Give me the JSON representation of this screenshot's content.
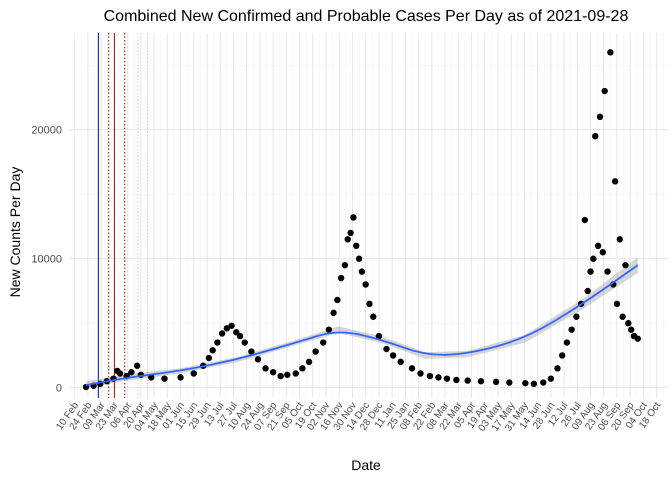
{
  "chart_data": {
    "type": "scatter",
    "title": "Combined New Confirmed and Probable Cases Per Day as of 2021-09-28",
    "xlabel": "Date",
    "ylabel": "New Counts Per Day",
    "xlim": [
      "2020-02-05",
      "2021-10-30"
    ],
    "ylim": [
      -800,
      27500
    ],
    "y_ticks": [
      0,
      10000,
      20000
    ],
    "y_tick_labels": [
      "0",
      "10000",
      "20000"
    ],
    "x_ticks": [
      "2020-02-10",
      "2020-02-24",
      "2020-03-09",
      "2020-03-23",
      "2020-04-06",
      "2020-04-20",
      "2020-05-04",
      "2020-05-18",
      "2020-06-01",
      "2020-06-15",
      "2020-06-29",
      "2020-07-13",
      "2020-07-27",
      "2020-08-10",
      "2020-08-24",
      "2020-09-07",
      "2020-09-21",
      "2020-10-05",
      "2020-10-19",
      "2020-11-02",
      "2020-11-16",
      "2020-11-30",
      "2020-12-14",
      "2020-12-28",
      "2021-01-11",
      "2021-01-25",
      "2021-02-08",
      "2021-02-22",
      "2021-03-08",
      "2021-03-22",
      "2021-04-05",
      "2021-04-19",
      "2021-05-03",
      "2021-05-17",
      "2021-05-31",
      "2021-06-14",
      "2021-06-28",
      "2021-07-12",
      "2021-07-26",
      "2021-08-09",
      "2021-08-23",
      "2021-09-06",
      "2021-09-20",
      "2021-10-04",
      "2021-10-18"
    ],
    "x_tick_labels": [
      "10 Feb",
      "24 Feb",
      "09 Mar",
      "23 Mar",
      "06 Apr",
      "20 Apr",
      "04 May",
      "18 May",
      "01 Jun",
      "15 Jun",
      "29 Jun",
      "13 Jul",
      "27 Jul",
      "10 Aug",
      "24 Aug",
      "07 Sep",
      "21 Sep",
      "05 Oct",
      "19 Oct",
      "02 Nov",
      "16 Nov",
      "30 Nov",
      "14 Dec",
      "28 Dec",
      "11 Jan",
      "25 Jan",
      "08 Feb",
      "22 Feb",
      "08 Mar",
      "22 Mar",
      "05 Apr",
      "19 Apr",
      "03 May",
      "17 May",
      "31 May",
      "14 Jun",
      "28 Jun",
      "12 Jul",
      "26 Jul",
      "09 Aug",
      "23 Aug",
      "06 Sep",
      "20 Sep",
      "04 Oct",
      "18 Oct"
    ],
    "grid": true,
    "vertical_lines": [
      {
        "x": "2020-03-06",
        "color": "#0000cc",
        "style": "solid"
      },
      {
        "x": "2020-03-17",
        "color": "#8b0000",
        "style": "dotted"
      },
      {
        "x": "2020-03-23",
        "color": "#cc0000",
        "style": "solid"
      },
      {
        "x": "2020-04-03",
        "color": "#8b0000",
        "style": "dotted"
      },
      {
        "x": "2020-04-17",
        "color": "#ffb6c1",
        "style": "dotted"
      },
      {
        "x": "2020-04-27",
        "color": "#ffb6c1",
        "style": "dotted"
      }
    ],
    "series": [
      {
        "kind": "points",
        "color": "#000000",
        "values": [
          {
            "x": "2020-02-22",
            "y": 50
          },
          {
            "x": "2020-03-01",
            "y": 150
          },
          {
            "x": "2020-03-08",
            "y": 300
          },
          {
            "x": "2020-03-15",
            "y": 500
          },
          {
            "x": "2020-03-22",
            "y": 700
          },
          {
            "x": "2020-03-26",
            "y": 1300
          },
          {
            "x": "2020-03-29",
            "y": 1100
          },
          {
            "x": "2020-04-05",
            "y": 900
          },
          {
            "x": "2020-04-10",
            "y": 1200
          },
          {
            "x": "2020-04-16",
            "y": 1700
          },
          {
            "x": "2020-04-20",
            "y": 1000
          },
          {
            "x": "2020-05-01",
            "y": 800
          },
          {
            "x": "2020-05-15",
            "y": 700
          },
          {
            "x": "2020-06-01",
            "y": 800
          },
          {
            "x": "2020-06-15",
            "y": 1100
          },
          {
            "x": "2020-06-25",
            "y": 1700
          },
          {
            "x": "2020-07-01",
            "y": 2300
          },
          {
            "x": "2020-07-05",
            "y": 2900
          },
          {
            "x": "2020-07-10",
            "y": 3500
          },
          {
            "x": "2020-07-15",
            "y": 4200
          },
          {
            "x": "2020-07-20",
            "y": 4600
          },
          {
            "x": "2020-07-25",
            "y": 4800
          },
          {
            "x": "2020-07-30",
            "y": 4300
          },
          {
            "x": "2020-08-03",
            "y": 4000
          },
          {
            "x": "2020-08-08",
            "y": 3500
          },
          {
            "x": "2020-08-15",
            "y": 2800
          },
          {
            "x": "2020-08-22",
            "y": 2200
          },
          {
            "x": "2020-08-30",
            "y": 1500
          },
          {
            "x": "2020-09-07",
            "y": 1200
          },
          {
            "x": "2020-09-15",
            "y": 900
          },
          {
            "x": "2020-09-22",
            "y": 1000
          },
          {
            "x": "2020-10-01",
            "y": 1100
          },
          {
            "x": "2020-10-08",
            "y": 1500
          },
          {
            "x": "2020-10-15",
            "y": 2000
          },
          {
            "x": "2020-10-22",
            "y": 2800
          },
          {
            "x": "2020-10-30",
            "y": 3500
          },
          {
            "x": "2020-11-05",
            "y": 4500
          },
          {
            "x": "2020-11-10",
            "y": 5800
          },
          {
            "x": "2020-11-14",
            "y": 6800
          },
          {
            "x": "2020-11-18",
            "y": 8500
          },
          {
            "x": "2020-11-22",
            "y": 9500
          },
          {
            "x": "2020-11-25",
            "y": 11500
          },
          {
            "x": "2020-11-28",
            "y": 12000
          },
          {
            "x": "2020-12-01",
            "y": 13200
          },
          {
            "x": "2020-12-04",
            "y": 11000
          },
          {
            "x": "2020-12-07",
            "y": 10000
          },
          {
            "x": "2020-12-10",
            "y": 9000
          },
          {
            "x": "2020-12-14",
            "y": 8000
          },
          {
            "x": "2020-12-18",
            "y": 6500
          },
          {
            "x": "2020-12-22",
            "y": 5500
          },
          {
            "x": "2020-12-28",
            "y": 4000
          },
          {
            "x": "2021-01-05",
            "y": 3000
          },
          {
            "x": "2021-01-12",
            "y": 2500
          },
          {
            "x": "2021-01-20",
            "y": 2000
          },
          {
            "x": "2021-02-01",
            "y": 1500
          },
          {
            "x": "2021-02-10",
            "y": 1100
          },
          {
            "x": "2021-02-20",
            "y": 900
          },
          {
            "x": "2021-03-01",
            "y": 800
          },
          {
            "x": "2021-03-10",
            "y": 700
          },
          {
            "x": "2021-03-20",
            "y": 600
          },
          {
            "x": "2021-04-01",
            "y": 550
          },
          {
            "x": "2021-04-15",
            "y": 500
          },
          {
            "x": "2021-05-01",
            "y": 450
          },
          {
            "x": "2021-05-15",
            "y": 400
          },
          {
            "x": "2021-06-01",
            "y": 350
          },
          {
            "x": "2021-06-10",
            "y": 300
          },
          {
            "x": "2021-06-20",
            "y": 400
          },
          {
            "x": "2021-06-28",
            "y": 700
          },
          {
            "x": "2021-07-05",
            "y": 1500
          },
          {
            "x": "2021-07-10",
            "y": 2500
          },
          {
            "x": "2021-07-15",
            "y": 3500
          },
          {
            "x": "2021-07-20",
            "y": 4500
          },
          {
            "x": "2021-07-25",
            "y": 5500
          },
          {
            "x": "2021-07-30",
            "y": 6500
          },
          {
            "x": "2021-08-03",
            "y": 13000
          },
          {
            "x": "2021-08-06",
            "y": 7500
          },
          {
            "x": "2021-08-09",
            "y": 9000
          },
          {
            "x": "2021-08-12",
            "y": 10000
          },
          {
            "x": "2021-08-14",
            "y": 19500
          },
          {
            "x": "2021-08-17",
            "y": 11000
          },
          {
            "x": "2021-08-19",
            "y": 21000
          },
          {
            "x": "2021-08-22",
            "y": 10500
          },
          {
            "x": "2021-08-24",
            "y": 23000
          },
          {
            "x": "2021-08-27",
            "y": 9000
          },
          {
            "x": "2021-08-30",
            "y": 26000
          },
          {
            "x": "2021-09-02",
            "y": 8000
          },
          {
            "x": "2021-09-04",
            "y": 16000
          },
          {
            "x": "2021-09-06",
            "y": 6500
          },
          {
            "x": "2021-09-09",
            "y": 11500
          },
          {
            "x": "2021-09-12",
            "y": 5500
          },
          {
            "x": "2021-09-15",
            "y": 9500
          },
          {
            "x": "2021-09-18",
            "y": 5000
          },
          {
            "x": "2021-09-21",
            "y": 4500
          },
          {
            "x": "2021-09-24",
            "y": 4000
          },
          {
            "x": "2021-09-28",
            "y": 3800
          }
        ]
      },
      {
        "kind": "smooth",
        "color": "#3366ff",
        "values": [
          {
            "x": "2020-02-22",
            "y": 200,
            "lo": 0,
            "hi": 500
          },
          {
            "x": "2020-04-01",
            "y": 750,
            "lo": 500,
            "hi": 1000
          },
          {
            "x": "2020-06-01",
            "y": 1300,
            "lo": 1100,
            "hi": 1500
          },
          {
            "x": "2020-08-01",
            "y": 2200,
            "lo": 2000,
            "hi": 2400
          },
          {
            "x": "2020-10-01",
            "y": 3500,
            "lo": 3300,
            "hi": 3700
          },
          {
            "x": "2020-11-15",
            "y": 4500,
            "lo": 4250,
            "hi": 4750
          },
          {
            "x": "2021-01-01",
            "y": 3700,
            "lo": 3450,
            "hi": 3950
          },
          {
            "x": "2021-02-15",
            "y": 2500,
            "lo": 2250,
            "hi": 2750
          },
          {
            "x": "2021-04-01",
            "y": 2600,
            "lo": 2350,
            "hi": 2850
          },
          {
            "x": "2021-06-01",
            "y": 3800,
            "lo": 3500,
            "hi": 4100
          },
          {
            "x": "2021-08-01",
            "y": 6500,
            "lo": 6100,
            "hi": 6900
          },
          {
            "x": "2021-09-28",
            "y": 9500,
            "lo": 8900,
            "hi": 10100
          }
        ]
      }
    ]
  }
}
